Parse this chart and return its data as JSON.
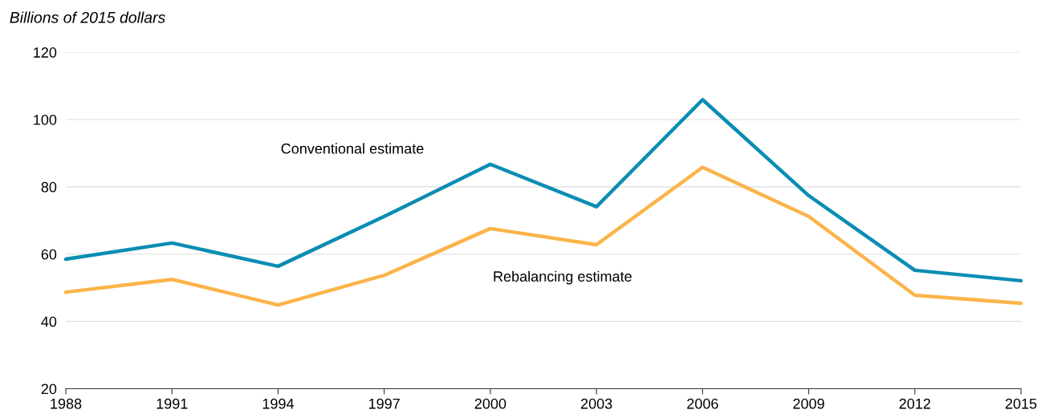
{
  "chart_data": {
    "type": "line",
    "ylabel": "Billions of 2015 dollars",
    "x": [
      1988,
      1991,
      1994,
      1997,
      2000,
      2003,
      2006,
      2009,
      2012,
      2015
    ],
    "series": [
      {
        "name": "Conventional estimate",
        "color": "#0a8db3",
        "values": [
          58.5,
          63.3,
          56.4,
          71.2,
          86.7,
          74.1,
          105.9,
          77.4,
          55.2,
          52.1
        ]
      },
      {
        "name": "Rebalancing estimate",
        "color": "#fbb44a",
        "values": [
          48.7,
          52.5,
          44.9,
          53.7,
          67.6,
          62.8,
          85.8,
          71.2,
          47.8,
          45.4
        ]
      }
    ],
    "xlim": [
      1988,
      2015
    ],
    "xticks": [
      1988,
      1991,
      1994,
      1997,
      2000,
      2003,
      2006,
      2009,
      2012,
      2015
    ],
    "ylim": [
      20,
      120
    ],
    "yticks": [
      20,
      40,
      60,
      80,
      100,
      120
    ],
    "grid": "y",
    "legend": false,
    "marker": "none",
    "line_style": "solid"
  }
}
